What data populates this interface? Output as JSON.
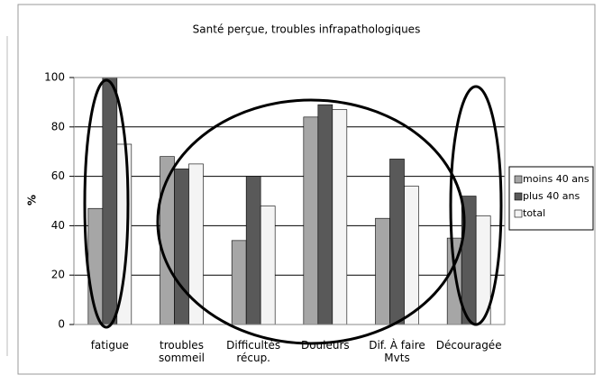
{
  "chart_data": {
    "type": "bar",
    "title": "Santé perçue, troubles infrapathologiques",
    "y_label": "%",
    "categories": [
      "fatigue",
      "troubles sommeil",
      "Difficultés récup.",
      "Douleurs",
      "Dif. À faire Mvts",
      "Découragée"
    ],
    "series": [
      {
        "name": "moins 40 ans",
        "color": "#a6a6a6",
        "values": [
          47,
          68,
          34,
          84,
          43,
          35
        ]
      },
      {
        "name": "plus 40 ans",
        "color": "#595959",
        "values": [
          100,
          63,
          60,
          89,
          67,
          52
        ]
      },
      {
        "name": "total",
        "color": "#f4f4f4",
        "values": [
          73,
          65,
          48,
          87,
          56,
          44
        ]
      }
    ],
    "ylim": [
      0,
      100
    ],
    "yticks": [
      0,
      20,
      40,
      60,
      80,
      100
    ],
    "grid": true,
    "legend": "right"
  }
}
